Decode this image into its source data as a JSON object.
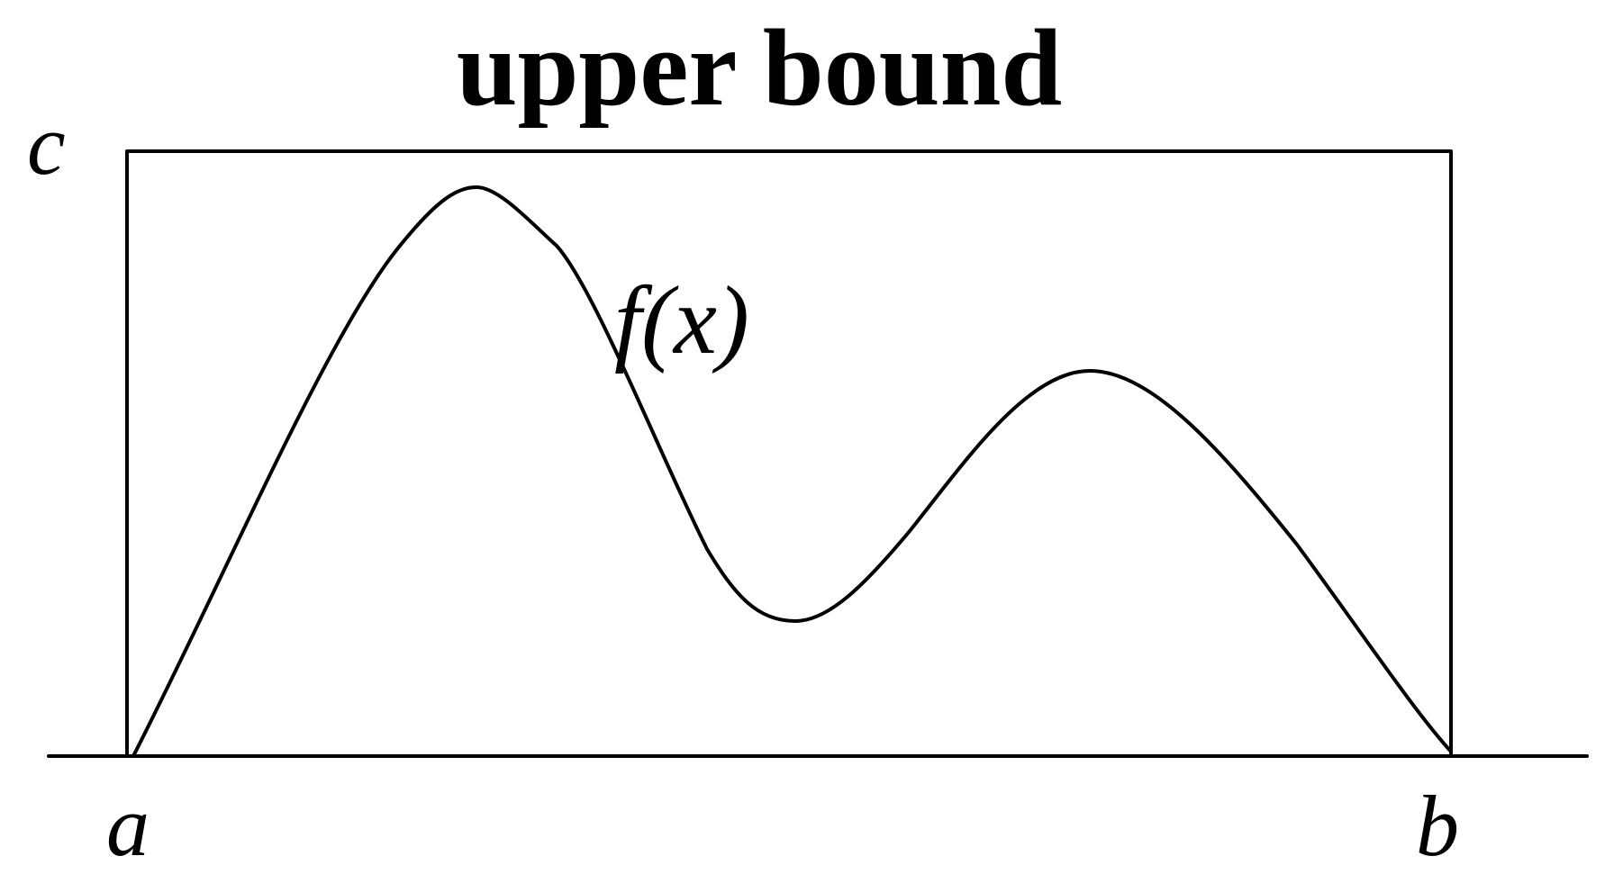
{
  "title": "upper bound",
  "labels": {
    "c": "c",
    "a": "a",
    "b": "b",
    "function": "f(x)"
  },
  "colors": {
    "stroke": "#000000",
    "background": "#ffffff"
  }
}
